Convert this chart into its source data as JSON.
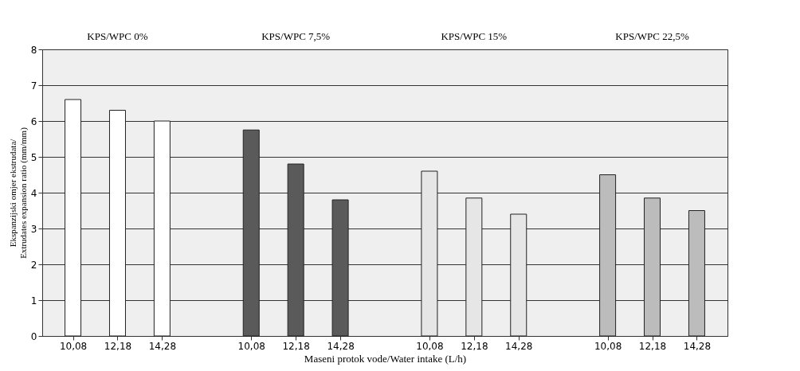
{
  "chart_data": {
    "type": "bar",
    "xlabel": "Maseni protok vode/Water intake (L/h)",
    "ylabel": "Ekspanzijski omjer ekstrudata/ Extrudates expansion ratio (mm/mm)",
    "categories": [
      "10,08",
      "12,18",
      "14,28",
      "10,08",
      "12,18",
      "14,28",
      "10,08",
      "12,18",
      "14,28",
      "10,08",
      "12,18",
      "14,28"
    ],
    "values": [
      6.6,
      6.3,
      6.0,
      5.75,
      4.8,
      3.8,
      4.6,
      3.85,
      3.4,
      4.5,
      3.85,
      3.5
    ],
    "colors": [
      "#ffffff",
      "#ffffff",
      "#ffffff",
      "#5a5a5a",
      "#5a5a5a",
      "#5a5a5a",
      "#e6e6e6",
      "#e6e6e6",
      "#e6e6e6",
      "#bcbcbc",
      "#bcbcbc",
      "#bcbcbc"
    ],
    "annotations": [
      "KPS/WPC 0%",
      "KPS/WPC 7,5%",
      "KPS/WPC 15%",
      "KPS/WPC 22,5%"
    ],
    "ylim": [
      0,
      8
    ],
    "yticks": [
      0,
      1,
      2,
      3,
      4,
      5,
      6,
      7,
      8
    ],
    "grid": "y"
  }
}
